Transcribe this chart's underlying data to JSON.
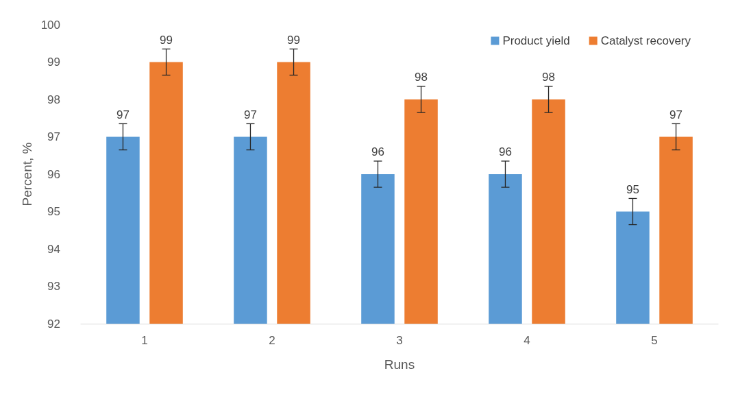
{
  "chart_data": {
    "type": "bar",
    "xlabel": "Runs",
    "ylabel": "Percent, %",
    "categories": [
      "1",
      "2",
      "3",
      "4",
      "5"
    ],
    "series": [
      {
        "name": "Product yield",
        "color": "#5b9bd5",
        "values": [
          97,
          97,
          96,
          96,
          95
        ],
        "errors": [
          0.35,
          0.35,
          0.35,
          0.35,
          0.35
        ]
      },
      {
        "name": "Catalyst recovery",
        "color": "#ed7d31",
        "values": [
          99,
          99,
          98,
          98,
          97
        ],
        "errors": [
          0.35,
          0.35,
          0.35,
          0.35,
          0.35
        ]
      }
    ],
    "ylim": [
      92,
      100
    ],
    "yticks": [
      92,
      93,
      94,
      95,
      96,
      97,
      98,
      99,
      100
    ],
    "grid": false,
    "legend": "top right",
    "data_labels": true
  }
}
